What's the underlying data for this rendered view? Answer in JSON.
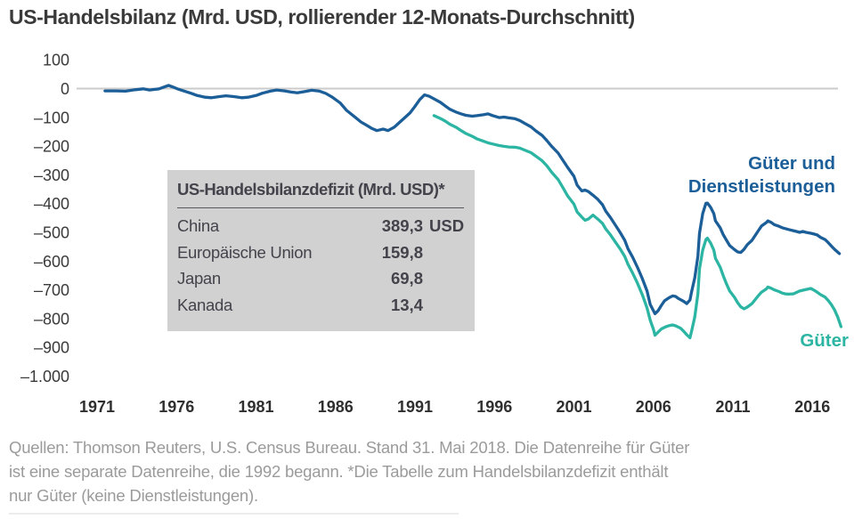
{
  "page": {
    "title": "US-Handelsbilanz (Mrd. USD, rollierender 12-Monats-Durchschnitt)"
  },
  "colors": {
    "goods_services_line": "#1b5e98",
    "goods_line": "#2cb5a2",
    "zero_gridline": "#cbcbcb",
    "axis_text": "#3a3a3a",
    "table_background": "#d1d1d1",
    "table_text": "#43434b",
    "footer_text": "#9b9b9b"
  },
  "chart_data": {
    "type": "line",
    "title": "US-Handelsbilanz (Mrd. USD, rollierender 12-Monats-Durchschnitt)",
    "xlabel": "",
    "ylabel": "",
    "xlim": [
      1971,
      2018.75
    ],
    "ylim": [
      -1000,
      100
    ],
    "grid": "zero-line-only",
    "legend_position": "inline-right",
    "yticks": [
      {
        "label": "100",
        "value": 100
      },
      {
        "label": "0",
        "value": 0
      },
      {
        "label": "–100",
        "value": -100
      },
      {
        "label": "–200",
        "value": -200
      },
      {
        "label": "–300",
        "value": -300
      },
      {
        "label": "–400",
        "value": -400
      },
      {
        "label": "–500",
        "value": -500
      },
      {
        "label": "–600",
        "value": -600
      },
      {
        "label": "–700",
        "value": -700
      },
      {
        "label": "–800",
        "value": -800
      },
      {
        "label": "–900",
        "value": -900
      },
      {
        "label": "–1.000",
        "value": -1000
      }
    ],
    "xticks": [
      "1971",
      "1976",
      "1981",
      "1986",
      "1991",
      "1996",
      "2001",
      "2006",
      "2011",
      "2016"
    ],
    "series": [
      {
        "name": "goods-and-services",
        "label": "Güter und Dienstleistungen",
        "label_lines": [
          "Güter und",
          "Dienstleistungen"
        ],
        "color": "#1b5e98",
        "points": [
          [
            1971.5,
            -8
          ],
          [
            1972.2,
            -8
          ],
          [
            1972.8,
            -9
          ],
          [
            1973.4,
            -4
          ],
          [
            1973.9,
            -1
          ],
          [
            1974.3,
            -5
          ],
          [
            1974.9,
            -1
          ],
          [
            1975.3,
            7
          ],
          [
            1975.5,
            11
          ],
          [
            1975.8,
            5
          ],
          [
            1976.1,
            -2
          ],
          [
            1976.5,
            -9
          ],
          [
            1976.9,
            -16
          ],
          [
            1977.3,
            -24
          ],
          [
            1977.8,
            -30
          ],
          [
            1978.2,
            -32
          ],
          [
            1978.7,
            -28
          ],
          [
            1979.1,
            -25
          ],
          [
            1979.6,
            -28
          ],
          [
            1980.1,
            -32
          ],
          [
            1980.5,
            -30
          ],
          [
            1981.0,
            -24
          ],
          [
            1981.4,
            -16
          ],
          [
            1981.9,
            -9
          ],
          [
            1982.3,
            -5
          ],
          [
            1982.8,
            -8
          ],
          [
            1983.2,
            -12
          ],
          [
            1983.6,
            -15
          ],
          [
            1984.1,
            -10
          ],
          [
            1984.5,
            -6
          ],
          [
            1985.0,
            -9
          ],
          [
            1985.4,
            -17
          ],
          [
            1985.8,
            -30
          ],
          [
            1986.3,
            -50
          ],
          [
            1986.7,
            -76
          ],
          [
            1987.2,
            -98
          ],
          [
            1987.6,
            -116
          ],
          [
            1988.0,
            -129
          ],
          [
            1988.3,
            -139
          ],
          [
            1988.6,
            -146
          ],
          [
            1989.0,
            -141
          ],
          [
            1989.3,
            -146
          ],
          [
            1989.7,
            -134
          ],
          [
            1990.0,
            -119
          ],
          [
            1990.3,
            -104
          ],
          [
            1990.7,
            -84
          ],
          [
            1991.0,
            -62
          ],
          [
            1991.3,
            -38
          ],
          [
            1991.6,
            -22
          ],
          [
            1991.9,
            -27
          ],
          [
            1992.2,
            -36
          ],
          [
            1992.6,
            -48
          ],
          [
            1992.9,
            -60
          ],
          [
            1993.2,
            -72
          ],
          [
            1993.6,
            -82
          ],
          [
            1993.9,
            -88
          ],
          [
            1994.2,
            -93
          ],
          [
            1994.6,
            -96
          ],
          [
            1994.9,
            -94
          ],
          [
            1995.3,
            -91
          ],
          [
            1995.6,
            -88
          ],
          [
            1995.9,
            -94
          ],
          [
            1996.3,
            -101
          ],
          [
            1996.6,
            -99
          ],
          [
            1996.9,
            -102
          ],
          [
            1997.3,
            -105
          ],
          [
            1997.6,
            -111
          ],
          [
            1997.9,
            -121
          ],
          [
            1998.3,
            -133
          ],
          [
            1998.6,
            -147
          ],
          [
            1999.0,
            -163
          ],
          [
            1999.3,
            -181
          ],
          [
            1999.6,
            -201
          ],
          [
            2000.0,
            -224
          ],
          [
            2000.3,
            -249
          ],
          [
            2000.6,
            -274
          ],
          [
            2001.0,
            -305
          ],
          [
            2001.2,
            -336
          ],
          [
            2001.5,
            -356
          ],
          [
            2001.7,
            -353
          ],
          [
            2001.9,
            -358
          ],
          [
            2002.2,
            -371
          ],
          [
            2002.5,
            -385
          ],
          [
            2002.8,
            -404
          ],
          [
            2003.0,
            -426
          ],
          [
            2003.3,
            -449
          ],
          [
            2003.6,
            -474
          ],
          [
            2003.9,
            -500
          ],
          [
            2004.2,
            -528
          ],
          [
            2004.4,
            -557
          ],
          [
            2004.7,
            -587
          ],
          [
            2005.0,
            -622
          ],
          [
            2005.3,
            -661
          ],
          [
            2005.6,
            -704
          ],
          [
            2005.8,
            -751
          ],
          [
            2006.1,
            -783
          ],
          [
            2006.3,
            -772
          ],
          [
            2006.5,
            -754
          ],
          [
            2006.7,
            -738
          ],
          [
            2007.0,
            -727
          ],
          [
            2007.2,
            -721
          ],
          [
            2007.4,
            -723
          ],
          [
            2007.6,
            -731
          ],
          [
            2007.9,
            -740
          ],
          [
            2008.1,
            -748
          ],
          [
            2008.3,
            -735
          ],
          [
            2008.4,
            -707
          ],
          [
            2008.6,
            -658
          ],
          [
            2008.8,
            -583
          ],
          [
            2008.9,
            -503
          ],
          [
            2009.1,
            -435
          ],
          [
            2009.3,
            -399
          ],
          [
            2009.4,
            -398
          ],
          [
            2009.6,
            -413
          ],
          [
            2009.8,
            -435
          ],
          [
            2009.9,
            -460
          ],
          [
            2010.2,
            -484
          ],
          [
            2010.4,
            -509
          ],
          [
            2010.6,
            -528
          ],
          [
            2010.8,
            -546
          ],
          [
            2011.1,
            -560
          ],
          [
            2011.3,
            -568
          ],
          [
            2011.5,
            -570
          ],
          [
            2011.7,
            -559
          ],
          [
            2011.9,
            -543
          ],
          [
            2012.2,
            -528
          ],
          [
            2012.4,
            -511
          ],
          [
            2012.6,
            -494
          ],
          [
            2012.8,
            -478
          ],
          [
            2013.1,
            -466
          ],
          [
            2013.2,
            -460
          ],
          [
            2013.4,
            -465
          ],
          [
            2013.6,
            -473
          ],
          [
            2013.9,
            -479
          ],
          [
            2014.1,
            -484
          ],
          [
            2014.3,
            -487
          ],
          [
            2014.5,
            -490
          ],
          [
            2014.8,
            -494
          ],
          [
            2015.0,
            -497
          ],
          [
            2015.2,
            -500
          ],
          [
            2015.4,
            -497
          ],
          [
            2015.6,
            -500
          ],
          [
            2015.9,
            -503
          ],
          [
            2016.1,
            -506
          ],
          [
            2016.3,
            -509
          ],
          [
            2016.5,
            -517
          ],
          [
            2016.8,
            -525
          ],
          [
            2017.0,
            -536
          ],
          [
            2017.2,
            -548
          ],
          [
            2017.4,
            -559
          ],
          [
            2017.7,
            -574
          ]
        ]
      },
      {
        "name": "goods",
        "label": "Güter",
        "label_lines": [
          "Güter"
        ],
        "color": "#2cb5a2",
        "points": [
          [
            1992.2,
            -94
          ],
          [
            1992.6,
            -104
          ],
          [
            1992.9,
            -113
          ],
          [
            1993.2,
            -124
          ],
          [
            1993.6,
            -135
          ],
          [
            1993.9,
            -146
          ],
          [
            1994.2,
            -156
          ],
          [
            1994.6,
            -166
          ],
          [
            1994.9,
            -175
          ],
          [
            1995.3,
            -183
          ],
          [
            1995.6,
            -189
          ],
          [
            1995.9,
            -193
          ],
          [
            1996.3,
            -198
          ],
          [
            1996.6,
            -201
          ],
          [
            1996.9,
            -203
          ],
          [
            1997.3,
            -204
          ],
          [
            1997.6,
            -207
          ],
          [
            1997.9,
            -214
          ],
          [
            1998.3,
            -223
          ],
          [
            1998.6,
            -235
          ],
          [
            1999.0,
            -251
          ],
          [
            1999.3,
            -269
          ],
          [
            1999.6,
            -291
          ],
          [
            2000.0,
            -316
          ],
          [
            2000.3,
            -344
          ],
          [
            2000.6,
            -373
          ],
          [
            2001.0,
            -402
          ],
          [
            2001.2,
            -429
          ],
          [
            2001.5,
            -447
          ],
          [
            2001.7,
            -458
          ],
          [
            2001.9,
            -454
          ],
          [
            2002.2,
            -440
          ],
          [
            2002.5,
            -454
          ],
          [
            2002.8,
            -469
          ],
          [
            2003.0,
            -488
          ],
          [
            2003.3,
            -509
          ],
          [
            2003.6,
            -533
          ],
          [
            2003.9,
            -557
          ],
          [
            2004.2,
            -584
          ],
          [
            2004.4,
            -611
          ],
          [
            2004.7,
            -642
          ],
          [
            2005.0,
            -677
          ],
          [
            2005.3,
            -717
          ],
          [
            2005.6,
            -763
          ],
          [
            2005.8,
            -806
          ],
          [
            2006.0,
            -837
          ],
          [
            2006.1,
            -858
          ],
          [
            2006.3,
            -847
          ],
          [
            2006.5,
            -836
          ],
          [
            2006.8,
            -828
          ],
          [
            2007.0,
            -824
          ],
          [
            2007.2,
            -822
          ],
          [
            2007.4,
            -825
          ],
          [
            2007.7,
            -833
          ],
          [
            2007.9,
            -844
          ],
          [
            2008.1,
            -856
          ],
          [
            2008.3,
            -867
          ],
          [
            2008.4,
            -844
          ],
          [
            2008.6,
            -794
          ],
          [
            2008.8,
            -714
          ],
          [
            2008.9,
            -627
          ],
          [
            2009.1,
            -562
          ],
          [
            2009.3,
            -525
          ],
          [
            2009.4,
            -520
          ],
          [
            2009.6,
            -537
          ],
          [
            2009.8,
            -562
          ],
          [
            2009.9,
            -590
          ],
          [
            2010.2,
            -621
          ],
          [
            2010.4,
            -652
          ],
          [
            2010.6,
            -680
          ],
          [
            2010.8,
            -704
          ],
          [
            2011.1,
            -726
          ],
          [
            2011.3,
            -745
          ],
          [
            2011.5,
            -759
          ],
          [
            2011.7,
            -766
          ],
          [
            2011.9,
            -760
          ],
          [
            2012.2,
            -748
          ],
          [
            2012.4,
            -734
          ],
          [
            2012.6,
            -720
          ],
          [
            2012.8,
            -708
          ],
          [
            2013.1,
            -697
          ],
          [
            2013.2,
            -690
          ],
          [
            2013.4,
            -694
          ],
          [
            2013.6,
            -700
          ],
          [
            2013.9,
            -706
          ],
          [
            2014.1,
            -711
          ],
          [
            2014.3,
            -714
          ],
          [
            2014.5,
            -715
          ],
          [
            2014.8,
            -714
          ],
          [
            2015.0,
            -709
          ],
          [
            2015.2,
            -704
          ],
          [
            2015.5,
            -700
          ],
          [
            2015.9,
            -695
          ],
          [
            2016.1,
            -701
          ],
          [
            2016.3,
            -708
          ],
          [
            2016.5,
            -716
          ],
          [
            2016.8,
            -725
          ],
          [
            2017.0,
            -737
          ],
          [
            2017.2,
            -752
          ],
          [
            2017.4,
            -770
          ],
          [
            2017.6,
            -795
          ],
          [
            2017.8,
            -828
          ]
        ]
      }
    ]
  },
  "table": {
    "title": "US-Handelsbilanzdefizit (Mrd. USD)*",
    "rows": [
      {
        "label": "China",
        "value": "389,3",
        "unit": "USD"
      },
      {
        "label": "Europäische Union",
        "value": "159,8",
        "unit": ""
      },
      {
        "label": "Japan",
        "value": "69,8",
        "unit": ""
      },
      {
        "label": "Kanada",
        "value": "13,4",
        "unit": ""
      }
    ]
  },
  "footer": {
    "lines": [
      "Quellen: Thomson Reuters, U.S. Census Bureau. Stand 31. Mai 2018. Die Datenreihe für Güter",
      "ist eine separate Datenreihe, die 1992 begann. *Die Tabelle zum Handelsbilanzdefizit enthält",
      "nur Güter (keine Dienstleistungen)."
    ]
  }
}
